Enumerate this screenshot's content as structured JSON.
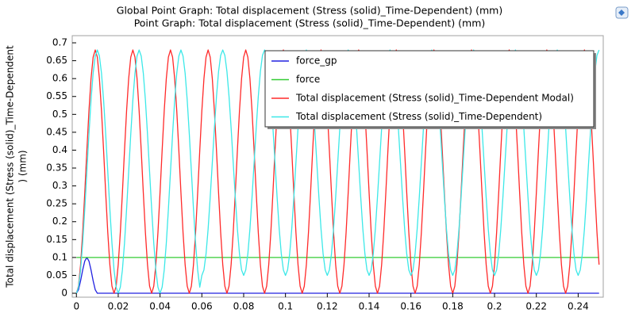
{
  "chart_data": {
    "type": "line",
    "title": "Global  Point Graph: Total displacement (Stress (solid)_Time-Dependent) (mm)",
    "subtitle": "Point Graph: Total displacement (Stress (solid)_Time-Dependent) (mm)",
    "ylabel": [
      "Total displacement (Stress (solid)_Time-Dependent",
      ") (mm)"
    ],
    "xlim": [
      -0.002,
      0.252
    ],
    "ylim": [
      -0.011,
      0.72
    ],
    "xticks": [
      0,
      0.02,
      0.04,
      0.06,
      0.08,
      0.1,
      0.12,
      0.14,
      0.16,
      0.18,
      0.2,
      0.22,
      0.24
    ],
    "yticks": [
      0,
      0.05,
      0.1,
      0.15,
      0.2,
      0.25,
      0.3,
      0.35,
      0.4,
      0.45,
      0.5,
      0.55,
      0.6,
      0.65,
      0.7
    ],
    "grid": false,
    "legend": "upper right",
    "x": [
      0,
      0.001,
      0.002,
      0.003,
      0.004,
      0.005,
      0.006,
      0.007,
      0.008,
      0.009,
      0.01,
      0.011,
      0.012,
      0.013,
      0.014,
      0.015,
      0.016,
      0.017,
      0.018,
      0.019,
      0.02,
      0.021,
      0.022,
      0.023,
      0.024,
      0.025,
      0.026,
      0.027,
      0.028,
      0.029,
      0.03,
      0.031,
      0.032,
      0.033,
      0.034,
      0.035,
      0.036,
      0.037,
      0.038,
      0.039,
      0.04,
      0.041,
      0.042,
      0.043,
      0.044,
      0.045,
      0.046,
      0.047,
      0.048,
      0.049,
      0.05,
      0.051,
      0.052,
      0.053,
      0.054,
      0.055,
      0.056,
      0.057,
      0.058,
      0.059,
      0.06,
      0.061,
      0.062,
      0.063,
      0.064,
      0.065,
      0.066,
      0.067,
      0.068,
      0.069,
      0.07,
      0.071,
      0.072,
      0.073,
      0.074,
      0.075,
      0.076,
      0.077,
      0.078,
      0.079,
      0.08,
      0.081,
      0.082,
      0.083,
      0.084,
      0.085,
      0.086,
      0.087,
      0.088,
      0.089,
      0.09,
      0.091,
      0.092,
      0.093,
      0.094,
      0.095,
      0.096,
      0.097,
      0.098,
      0.099,
      0.1,
      0.101,
      0.102,
      0.103,
      0.104,
      0.105,
      0.106,
      0.107,
      0.108,
      0.109,
      0.11,
      0.111,
      0.112,
      0.113,
      0.114,
      0.115,
      0.116,
      0.117,
      0.118,
      0.119,
      0.12,
      0.121,
      0.122,
      0.123,
      0.124,
      0.125,
      0.126,
      0.127,
      0.128,
      0.129,
      0.13,
      0.131,
      0.132,
      0.133,
      0.134,
      0.135,
      0.136,
      0.137,
      0.138,
      0.139,
      0.14,
      0.141,
      0.142,
      0.143,
      0.144,
      0.145,
      0.146,
      0.147,
      0.148,
      0.149,
      0.15,
      0.151,
      0.152,
      0.153,
      0.154,
      0.155,
      0.156,
      0.157,
      0.158,
      0.159,
      0.16,
      0.161,
      0.162,
      0.163,
      0.164,
      0.165,
      0.166,
      0.167,
      0.168,
      0.169,
      0.17,
      0.171,
      0.172,
      0.173,
      0.174,
      0.175,
      0.176,
      0.177,
      0.178,
      0.179,
      0.18,
      0.181,
      0.182,
      0.183,
      0.184,
      0.185,
      0.186,
      0.187,
      0.188,
      0.189,
      0.19,
      0.191,
      0.192,
      0.193,
      0.194,
      0.195,
      0.196,
      0.197,
      0.198,
      0.199,
      0.2,
      0.201,
      0.202,
      0.203,
      0.204,
      0.205,
      0.206,
      0.207,
      0.208,
      0.209,
      0.21,
      0.211,
      0.212,
      0.213,
      0.214,
      0.215,
      0.216,
      0.217,
      0.218,
      0.219,
      0.22,
      0.221,
      0.222,
      0.223,
      0.224,
      0.225,
      0.226,
      0.227,
      0.228,
      0.229,
      0.23,
      0.231,
      0.232,
      0.233,
      0.234,
      0.235,
      0.236,
      0.237,
      0.238,
      0.239,
      0.24,
      0.241,
      0.242,
      0.243,
      0.244,
      0.245,
      0.246,
      0.247,
      0.248,
      0.249,
      0.25
    ],
    "series": [
      {
        "name": "force_gp",
        "color": "#2020e0",
        "values": [
          0,
          0.01,
          0.035,
          0.065,
          0.09,
          0.1,
          0.09,
          0.065,
          0.035,
          0.01,
          0,
          0,
          0,
          0,
          0,
          0,
          0,
          0,
          0,
          0,
          0,
          0,
          0,
          0,
          0,
          0,
          0,
          0,
          0,
          0,
          0,
          0,
          0,
          0,
          0,
          0,
          0,
          0,
          0,
          0,
          0,
          0,
          0,
          0,
          0,
          0,
          0,
          0,
          0,
          0,
          0,
          0,
          0,
          0,
          0,
          0,
          0,
          0,
          0,
          0,
          0,
          0,
          0,
          0,
          0,
          0,
          0,
          0,
          0,
          0,
          0,
          0,
          0,
          0,
          0,
          0,
          0,
          0,
          0,
          0,
          0,
          0,
          0,
          0,
          0,
          0,
          0,
          0,
          0,
          0,
          0,
          0,
          0,
          0,
          0,
          0,
          0,
          0,
          0,
          0,
          0,
          0,
          0,
          0,
          0,
          0,
          0,
          0,
          0,
          0,
          0,
          0,
          0,
          0,
          0,
          0,
          0,
          0,
          0,
          0,
          0,
          0,
          0,
          0,
          0,
          0,
          0,
          0,
          0,
          0,
          0,
          0,
          0,
          0,
          0,
          0,
          0,
          0,
          0,
          0,
          0,
          0,
          0,
          0,
          0,
          0,
          0,
          0,
          0,
          0,
          0,
          0,
          0,
          0,
          0,
          0,
          0,
          0,
          0,
          0,
          0,
          0,
          0,
          0,
          0,
          0,
          0,
          0,
          0,
          0,
          0,
          0,
          0,
          0,
          0,
          0,
          0,
          0,
          0,
          0,
          0,
          0,
          0,
          0,
          0,
          0,
          0,
          0,
          0,
          0,
          0,
          0,
          0,
          0,
          0,
          0,
          0,
          0,
          0,
          0,
          0,
          0,
          0,
          0,
          0,
          0,
          0,
          0,
          0,
          0,
          0,
          0,
          0,
          0,
          0,
          0,
          0,
          0,
          0,
          0,
          0,
          0,
          0,
          0,
          0,
          0,
          0,
          0,
          0,
          0,
          0,
          0,
          0,
          0,
          0,
          0,
          0,
          0,
          0,
          0,
          0,
          0,
          0,
          0,
          0,
          0,
          0,
          0,
          0,
          0,
          0
        ]
      },
      {
        "name": "force",
        "color": "#33cc33",
        "values": [
          0.1,
          0.1,
          0.1,
          0.1,
          0.1,
          0.1,
          0.1,
          0.1,
          0.1,
          0.1,
          0.1,
          0.1,
          0.1,
          0.1,
          0.1,
          0.1,
          0.1,
          0.1,
          0.1,
          0.1,
          0.1,
          0.1,
          0.1,
          0.1,
          0.1,
          0.1,
          0.1,
          0.1,
          0.1,
          0.1,
          0.1,
          0.1,
          0.1,
          0.1,
          0.1,
          0.1,
          0.1,
          0.1,
          0.1,
          0.1,
          0.1,
          0.1,
          0.1,
          0.1,
          0.1,
          0.1,
          0.1,
          0.1,
          0.1,
          0.1,
          0.1,
          0.1,
          0.1,
          0.1,
          0.1,
          0.1,
          0.1,
          0.1,
          0.1,
          0.1,
          0.1,
          0.1,
          0.1,
          0.1,
          0.1,
          0.1,
          0.1,
          0.1,
          0.1,
          0.1,
          0.1,
          0.1,
          0.1,
          0.1,
          0.1,
          0.1,
          0.1,
          0.1,
          0.1,
          0.1,
          0.1,
          0.1,
          0.1,
          0.1,
          0.1,
          0.1,
          0.1,
          0.1,
          0.1,
          0.1,
          0.1,
          0.1,
          0.1,
          0.1,
          0.1,
          0.1,
          0.1,
          0.1,
          0.1,
          0.1,
          0.1,
          0.1,
          0.1,
          0.1,
          0.1,
          0.1,
          0.1,
          0.1,
          0.1,
          0.1,
          0.1,
          0.1,
          0.1,
          0.1,
          0.1,
          0.1,
          0.1,
          0.1,
          0.1,
          0.1,
          0.1,
          0.1,
          0.1,
          0.1,
          0.1,
          0.1,
          0.1,
          0.1,
          0.1,
          0.1,
          0.1,
          0.1,
          0.1,
          0.1,
          0.1,
          0.1,
          0.1,
          0.1,
          0.1,
          0.1,
          0.1,
          0.1,
          0.1,
          0.1,
          0.1,
          0.1,
          0.1,
          0.1,
          0.1,
          0.1,
          0.1,
          0.1,
          0.1,
          0.1,
          0.1,
          0.1,
          0.1,
          0.1,
          0.1,
          0.1,
          0.1,
          0.1,
          0.1,
          0.1,
          0.1,
          0.1,
          0.1,
          0.1,
          0.1,
          0.1,
          0.1,
          0.1,
          0.1,
          0.1,
          0.1,
          0.1,
          0.1,
          0.1,
          0.1,
          0.1,
          0.1,
          0.1,
          0.1,
          0.1,
          0.1,
          0.1,
          0.1,
          0.1,
          0.1,
          0.1,
          0.1,
          0.1,
          0.1,
          0.1,
          0.1,
          0.1,
          0.1,
          0.1,
          0.1,
          0.1,
          0.1,
          0.1,
          0.1,
          0.1,
          0.1,
          0.1,
          0.1,
          0.1,
          0.1,
          0.1,
          0.1,
          0.1,
          0.1,
          0.1,
          0.1,
          0.1,
          0.1,
          0.1,
          0.1,
          0.1,
          0.1,
          0.1,
          0.1,
          0.1,
          0.1,
          0.1,
          0.1,
          0.1,
          0.1,
          0.1,
          0.1,
          0.1,
          0.1,
          0.1,
          0.1,
          0.1,
          0.1,
          0.1,
          0.1,
          0.1,
          0.1,
          0.1,
          0.1,
          0.1,
          0.1,
          0.1,
          0.1,
          0.1,
          0.1,
          0.1,
          0.1
        ]
      },
      {
        "name": "Total displacement (Stress (solid)_Time-Dependent Modal)",
        "color": "#ff2a2a",
        "values": [
          0,
          0.02,
          0.08,
          0.17,
          0.281,
          0.399,
          0.51,
          0.6,
          0.66,
          0.68,
          0.66,
          0.6,
          0.51,
          0.399,
          0.281,
          0.17,
          0.08,
          0.02,
          0,
          0.02,
          0.08,
          0.17,
          0.281,
          0.399,
          0.51,
          0.6,
          0.66,
          0.68,
          0.66,
          0.6,
          0.51,
          0.399,
          0.281,
          0.17,
          0.08,
          0.02,
          0,
          0.02,
          0.08,
          0.17,
          0.281,
          0.399,
          0.51,
          0.6,
          0.66,
          0.68,
          0.66,
          0.6,
          0.51,
          0.399,
          0.281,
          0.17,
          0.08,
          0.02,
          0,
          0.02,
          0.08,
          0.17,
          0.281,
          0.399,
          0.51,
          0.6,
          0.66,
          0.68,
          0.66,
          0.6,
          0.51,
          0.399,
          0.281,
          0.17,
          0.08,
          0.02,
          0,
          0.02,
          0.08,
          0.17,
          0.281,
          0.399,
          0.51,
          0.6,
          0.66,
          0.68,
          0.66,
          0.6,
          0.51,
          0.399,
          0.281,
          0.17,
          0.08,
          0.02,
          0,
          0.02,
          0.08,
          0.17,
          0.281,
          0.399,
          0.51,
          0.6,
          0.66,
          0.68,
          0.66,
          0.6,
          0.51,
          0.399,
          0.281,
          0.17,
          0.08,
          0.02,
          0,
          0.02,
          0.08,
          0.17,
          0.281,
          0.399,
          0.51,
          0.6,
          0.66,
          0.68,
          0.66,
          0.6,
          0.51,
          0.399,
          0.281,
          0.17,
          0.08,
          0.02,
          0,
          0.02,
          0.08,
          0.17,
          0.281,
          0.399,
          0.51,
          0.6,
          0.66,
          0.68,
          0.66,
          0.6,
          0.51,
          0.399,
          0.281,
          0.17,
          0.08,
          0.02,
          0,
          0.02,
          0.08,
          0.17,
          0.281,
          0.399,
          0.51,
          0.6,
          0.66,
          0.68,
          0.66,
          0.6,
          0.51,
          0.399,
          0.281,
          0.17,
          0.08,
          0.02,
          0,
          0.02,
          0.08,
          0.17,
          0.281,
          0.399,
          0.51,
          0.6,
          0.66,
          0.68,
          0.66,
          0.6,
          0.51,
          0.399,
          0.281,
          0.17,
          0.08,
          0.02,
          0,
          0.02,
          0.08,
          0.17,
          0.281,
          0.399,
          0.51,
          0.6,
          0.66,
          0.68,
          0.66,
          0.6,
          0.51,
          0.399,
          0.281,
          0.17,
          0.08,
          0.02,
          0,
          0.02,
          0.08,
          0.17,
          0.281,
          0.399,
          0.51,
          0.6,
          0.66,
          0.68,
          0.66,
          0.6,
          0.51,
          0.399,
          0.281,
          0.17,
          0.08,
          0.02,
          0,
          0.02,
          0.08,
          0.17,
          0.281,
          0.399,
          0.51,
          0.6,
          0.66,
          0.68,
          0.66,
          0.6,
          0.51,
          0.399,
          0.281,
          0.17,
          0.08,
          0.02,
          0,
          0.02,
          0.08,
          0.17,
          0.281,
          0.399,
          0.51,
          0.6,
          0.66,
          0.68,
          0.66,
          0.6,
          0.51,
          0.399,
          0.281,
          0.17,
          0.08
        ]
      },
      {
        "name": "Total displacement (Stress (solid)_Time-Dependent)",
        "color": "#3ce8e8",
        "values": [
          0,
          0.017,
          0.065,
          0.14,
          0.235,
          0.34,
          0.445,
          0.54,
          0.615,
          0.663,
          0.68,
          0.663,
          0.615,
          0.54,
          0.445,
          0.34,
          0.235,
          0.14,
          0.065,
          0.017,
          0,
          0.017,
          0.065,
          0.14,
          0.235,
          0.34,
          0.445,
          0.54,
          0.615,
          0.663,
          0.68,
          0.663,
          0.615,
          0.54,
          0.445,
          0.34,
          0.235,
          0.14,
          0.065,
          0.017,
          0,
          0.017,
          0.065,
          0.14,
          0.235,
          0.34,
          0.445,
          0.54,
          0.615,
          0.663,
          0.68,
          0.663,
          0.615,
          0.54,
          0.445,
          0.34,
          0.235,
          0.14,
          0.065,
          0.017,
          0.05,
          0.065,
          0.11,
          0.18,
          0.268,
          0.365,
          0.462,
          0.55,
          0.62,
          0.665,
          0.68,
          0.665,
          0.62,
          0.55,
          0.462,
          0.365,
          0.268,
          0.18,
          0.11,
          0.065,
          0.05,
          0.065,
          0.11,
          0.18,
          0.268,
          0.365,
          0.462,
          0.55,
          0.62,
          0.665,
          0.68,
          0.665,
          0.62,
          0.55,
          0.462,
          0.365,
          0.268,
          0.18,
          0.11,
          0.065,
          0.05,
          0.065,
          0.11,
          0.18,
          0.268,
          0.365,
          0.462,
          0.55,
          0.62,
          0.665,
          0.68,
          0.665,
          0.62,
          0.55,
          0.462,
          0.365,
          0.268,
          0.18,
          0.11,
          0.065,
          0.05,
          0.065,
          0.11,
          0.18,
          0.268,
          0.365,
          0.462,
          0.55,
          0.62,
          0.665,
          0.68,
          0.665,
          0.62,
          0.55,
          0.462,
          0.365,
          0.268,
          0.18,
          0.11,
          0.065,
          0.05,
          0.065,
          0.11,
          0.18,
          0.268,
          0.365,
          0.462,
          0.55,
          0.62,
          0.665,
          0.68,
          0.665,
          0.62,
          0.55,
          0.462,
          0.365,
          0.268,
          0.18,
          0.11,
          0.065,
          0.05,
          0.065,
          0.11,
          0.18,
          0.268,
          0.365,
          0.462,
          0.55,
          0.62,
          0.665,
          0.68,
          0.665,
          0.62,
          0.55,
          0.462,
          0.365,
          0.268,
          0.18,
          0.11,
          0.065,
          0.05,
          0.065,
          0.11,
          0.18,
          0.268,
          0.365,
          0.462,
          0.55,
          0.62,
          0.665,
          0.68,
          0.665,
          0.62,
          0.55,
          0.462,
          0.365,
          0.268,
          0.18,
          0.11,
          0.065,
          0.05,
          0.065,
          0.11,
          0.18,
          0.268,
          0.365,
          0.462,
          0.55,
          0.62,
          0.665,
          0.68,
          0.665,
          0.62,
          0.55,
          0.462,
          0.365,
          0.268,
          0.18,
          0.11,
          0.065,
          0.05,
          0.065,
          0.11,
          0.18,
          0.268,
          0.365,
          0.462,
          0.55,
          0.62,
          0.665,
          0.68,
          0.665,
          0.62,
          0.55,
          0.462,
          0.365,
          0.268,
          0.18,
          0.11,
          0.065,
          0.05,
          0.065,
          0.11,
          0.18,
          0.268,
          0.365,
          0.462,
          0.55,
          0.62,
          0.665,
          0.68
        ]
      }
    ]
  }
}
